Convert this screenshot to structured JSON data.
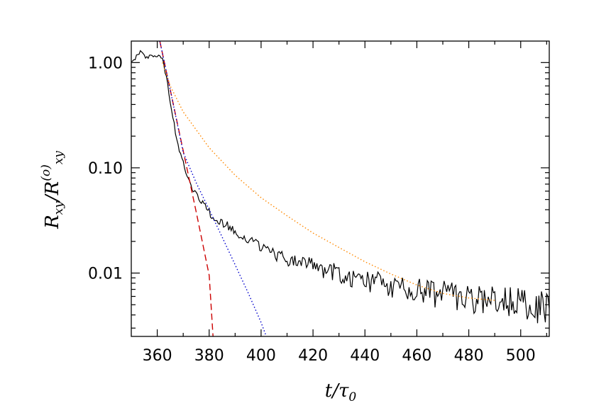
{
  "chart_data": {
    "type": "line",
    "xlabel": "t/τ0",
    "xlabel_parts": {
      "main": "t/τ",
      "sub": "0"
    },
    "ylabel": "Rxy/R(o)xy",
    "ylabel_parts": {
      "main": "R",
      "sub1": "xy",
      "div": "/R",
      "sup": "(o)",
      "sub2": "xy"
    },
    "xlim": [
      350,
      511
    ],
    "ylim": [
      0.0025,
      1.6
    ],
    "yscale": "log",
    "x_ticks": [
      360,
      380,
      400,
      420,
      440,
      460,
      480,
      500
    ],
    "x_tick_labels": [
      "360",
      "380",
      "400",
      "420",
      "440",
      "460",
      "480",
      "500"
    ],
    "y_ticks": [
      1.0,
      0.1,
      0.01
    ],
    "y_tick_labels": [
      "1.00",
      "0.10",
      "0.01"
    ],
    "grid": false,
    "legend": "none",
    "series": [
      {
        "style": "solid",
        "color": "#000000",
        "x": [
          350,
          352,
          354,
          356,
          358,
          360,
          362,
          364,
          366,
          368,
          370,
          372,
          375,
          378,
          381,
          385,
          390,
          395,
          400,
          405,
          410,
          420,
          430,
          440,
          450,
          460,
          470,
          480,
          490,
          500,
          511
        ],
        "y": [
          1.0,
          1.15,
          1.28,
          1.1,
          1.2,
          1.15,
          1.1,
          0.62,
          0.3,
          0.16,
          0.11,
          0.075,
          0.055,
          0.043,
          0.036,
          0.03,
          0.025,
          0.021,
          0.018,
          0.0155,
          0.0135,
          0.0115,
          0.0098,
          0.0085,
          0.0075,
          0.0068,
          0.0062,
          0.0058,
          0.0054,
          0.005,
          0.0046
        ]
      },
      {
        "style": "dashed",
        "color": "#cc0000",
        "x": [
          361,
          365,
          370,
          375,
          380,
          381.5
        ],
        "y": [
          1.6,
          0.55,
          0.145,
          0.038,
          0.0095,
          0.0025
        ]
      },
      {
        "style": "dotted",
        "color": "#0000cc",
        "x": [
          361,
          365,
          370,
          375,
          380,
          385,
          390,
          395,
          400,
          402
        ],
        "y": [
          1.6,
          0.55,
          0.14,
          0.072,
          0.04,
          0.022,
          0.012,
          0.0065,
          0.0034,
          0.0025
        ]
      },
      {
        "style": "dotted",
        "color": "#ff8800",
        "x": [
          362,
          365,
          370,
          380,
          390,
          400,
          410,
          420,
          430,
          440,
          450,
          460,
          470,
          480,
          490
        ],
        "y": [
          1.0,
          0.6,
          0.34,
          0.155,
          0.085,
          0.052,
          0.035,
          0.024,
          0.0175,
          0.0128,
          0.0098,
          0.0077,
          0.0064,
          0.0058,
          0.0055
        ]
      }
    ]
  }
}
